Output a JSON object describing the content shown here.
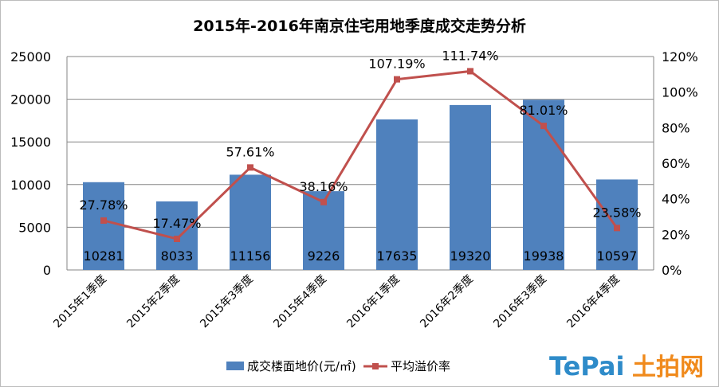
{
  "chart_data": {
    "type": "bar+line",
    "title": "2015年-2016年南京住宅用地季度成交走势分析",
    "categories": [
      "2015年1季度",
      "2015年2季度",
      "2015年3季度",
      "2015年4季度",
      "2016年1季度",
      "2016年2季度",
      "2016年3季度",
      "2016年4季度"
    ],
    "series": [
      {
        "name": "成交楼面地价(元/㎡)",
        "type": "bar",
        "axis": "left",
        "color": "#4f81bd",
        "values": [
          10281,
          8033,
          11156,
          9226,
          17635,
          19320,
          19938,
          10597
        ],
        "labels": [
          "10281",
          "8033",
          "11156",
          "9226",
          "17635",
          "19320",
          "19938",
          "10597"
        ]
      },
      {
        "name": "平均溢价率",
        "type": "line",
        "axis": "right",
        "color": "#c0504d",
        "values": [
          27.78,
          17.47,
          57.61,
          38.16,
          107.19,
          111.74,
          81.01,
          23.58
        ],
        "labels": [
          "27.78%",
          "17.47%",
          "57.61%",
          "38.16%",
          "107.19%",
          "111.74%",
          "81.01%",
          "23.58%"
        ]
      }
    ],
    "left_axis": {
      "range": [
        0,
        25000
      ],
      "ticks": [
        "0",
        "5000",
        "10000",
        "15000",
        "20000",
        "25000"
      ]
    },
    "right_axis": {
      "range": [
        0,
        120
      ],
      "unit": "%",
      "ticks": [
        "0%",
        "20%",
        "40%",
        "60%",
        "80%",
        "100%",
        "120%"
      ]
    },
    "grid": true,
    "legend": "bottom"
  },
  "logo": {
    "latin": "TePai",
    "cn": "土拍网",
    "colors": {
      "latin": "#2e8bc9",
      "cn": "#f08a1c"
    }
  }
}
